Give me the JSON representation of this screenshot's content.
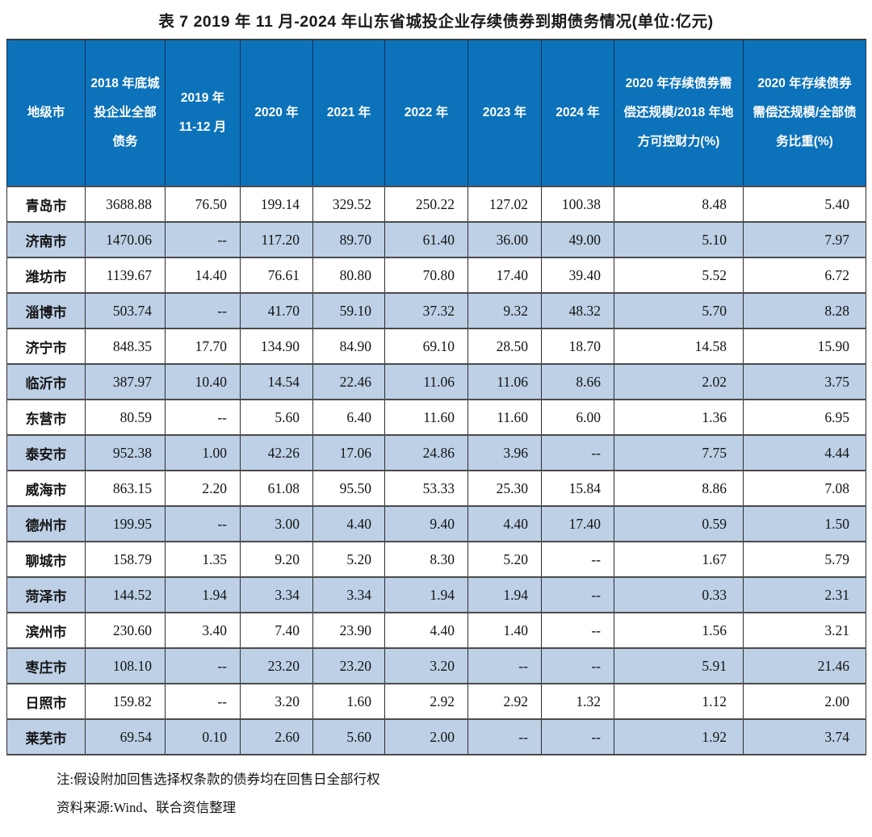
{
  "title": "表 7  2019 年 11 月-2024 年山东省城投企业存续债券到期债务情况(单位:亿元)",
  "table": {
    "headers": [
      "地级市",
      "2018 年底城投企业全部债务",
      "2019 年 11-12 月",
      "2020 年",
      "2021 年",
      "2022 年",
      "2023 年",
      "2024 年",
      "2020 年存续债券需偿还规模/2018 年地方可控财力(%)",
      "2020 年存续债券需偿还规模/全部债务比重(%)"
    ],
    "rows": [
      {
        "city": "青岛市",
        "values": [
          "3688.88",
          "76.50",
          "199.14",
          "329.52",
          "250.22",
          "127.02",
          "100.38",
          "8.48",
          "5.40"
        ]
      },
      {
        "city": "济南市",
        "values": [
          "1470.06",
          "--",
          "117.20",
          "89.70",
          "61.40",
          "36.00",
          "49.00",
          "5.10",
          "7.97"
        ]
      },
      {
        "city": "潍坊市",
        "values": [
          "1139.67",
          "14.40",
          "76.61",
          "80.80",
          "70.80",
          "17.40",
          "39.40",
          "5.52",
          "6.72"
        ]
      },
      {
        "city": "淄博市",
        "values": [
          "503.74",
          "--",
          "41.70",
          "59.10",
          "37.32",
          "9.32",
          "48.32",
          "5.70",
          "8.28"
        ]
      },
      {
        "city": "济宁市",
        "values": [
          "848.35",
          "17.70",
          "134.90",
          "84.90",
          "69.10",
          "28.50",
          "18.70",
          "14.58",
          "15.90"
        ]
      },
      {
        "city": "临沂市",
        "values": [
          "387.97",
          "10.40",
          "14.54",
          "22.46",
          "11.06",
          "11.06",
          "8.66",
          "2.02",
          "3.75"
        ]
      },
      {
        "city": "东营市",
        "values": [
          "80.59",
          "--",
          "5.60",
          "6.40",
          "11.60",
          "11.60",
          "6.00",
          "1.36",
          "6.95"
        ]
      },
      {
        "city": "泰安市",
        "values": [
          "952.38",
          "1.00",
          "42.26",
          "17.06",
          "24.86",
          "3.96",
          "--",
          "7.75",
          "4.44"
        ]
      },
      {
        "city": "威海市",
        "values": [
          "863.15",
          "2.20",
          "61.08",
          "95.50",
          "53.33",
          "25.30",
          "15.84",
          "8.86",
          "7.08"
        ]
      },
      {
        "city": "德州市",
        "values": [
          "199.95",
          "--",
          "3.00",
          "4.40",
          "9.40",
          "4.40",
          "17.40",
          "0.59",
          "1.50"
        ]
      },
      {
        "city": "聊城市",
        "values": [
          "158.79",
          "1.35",
          "9.20",
          "5.20",
          "8.30",
          "5.20",
          "--",
          "1.67",
          "5.79"
        ]
      },
      {
        "city": "菏泽市",
        "values": [
          "144.52",
          "1.94",
          "3.34",
          "3.34",
          "1.94",
          "1.94",
          "--",
          "0.33",
          "2.31"
        ]
      },
      {
        "city": "滨州市",
        "values": [
          "230.60",
          "3.40",
          "7.40",
          "23.90",
          "4.40",
          "1.40",
          "--",
          "1.56",
          "3.21"
        ]
      },
      {
        "city": "枣庄市",
        "values": [
          "108.10",
          "--",
          "23.20",
          "23.20",
          "3.20",
          "--",
          "--",
          "5.91",
          "21.46"
        ]
      },
      {
        "city": "日照市",
        "values": [
          "159.82",
          "--",
          "3.20",
          "1.60",
          "2.92",
          "2.92",
          "1.32",
          "1.12",
          "2.00"
        ]
      },
      {
        "city": "莱芜市",
        "values": [
          "69.54",
          "0.10",
          "2.60",
          "5.60",
          "2.00",
          "--",
          "--",
          "1.92",
          "3.74"
        ]
      }
    ]
  },
  "notes": {
    "note1": "注:假设附加回售选择权条款的债券均在回售日全部行权",
    "note2": "资料来源:Wind、联合资信整理"
  },
  "colors": {
    "header_bg": "#0c72ba",
    "stripe_bg": "#bdd0e6",
    "header_text": "#ffffff",
    "body_text": "#141414"
  }
}
